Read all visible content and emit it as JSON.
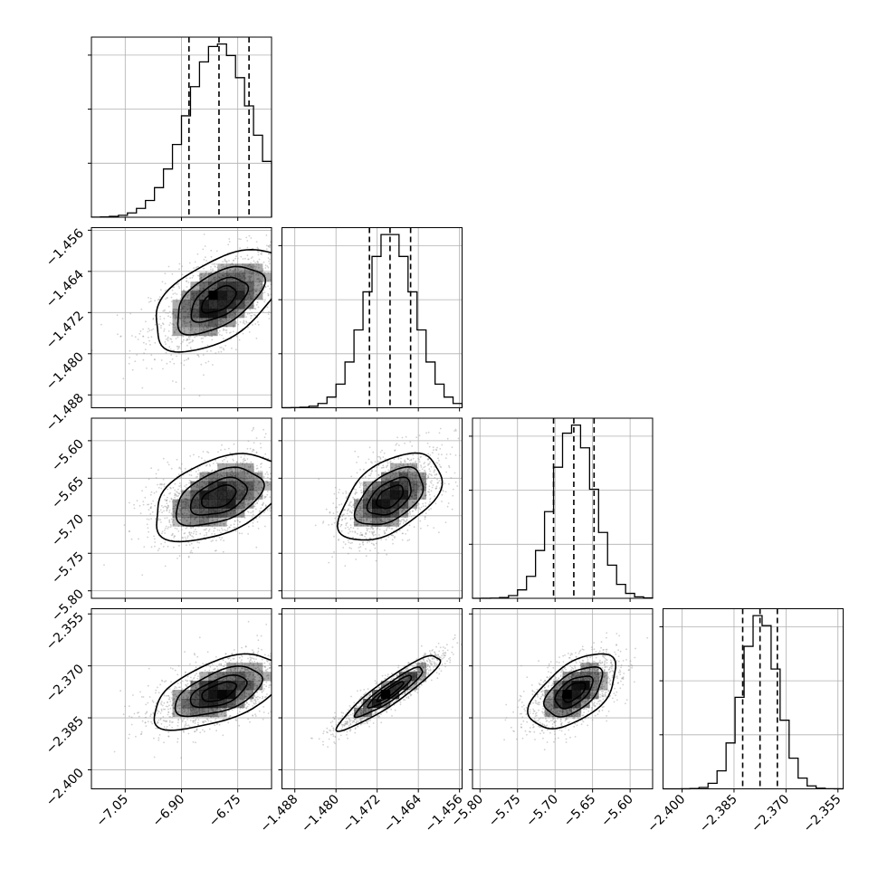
{
  "chart_data": {
    "type": "corner",
    "parameters": [
      {
        "index": 0,
        "median": -6.8,
        "q16": -6.88,
        "q84": -6.72,
        "sigma": 0.085,
        "range": [
          -7.14,
          -6.66
        ],
        "ticks": [
          -7.05,
          -6.9,
          -6.75
        ]
      },
      {
        "index": 1,
        "median": -1.4695,
        "q16": -1.4735,
        "q84": -1.4655,
        "sigma": 0.0048,
        "range": [
          -1.4905,
          -1.4555
        ],
        "ticks": [
          -1.488,
          -1.48,
          -1.472,
          -1.464,
          -1.456
        ]
      },
      {
        "index": 2,
        "median": -5.675,
        "q16": -5.702,
        "q84": -5.648,
        "sigma": 0.028,
        "range": [
          -5.81,
          -5.57
        ],
        "ticks": [
          -5.8,
          -5.75,
          -5.7,
          -5.65,
          -5.6
        ]
      },
      {
        "index": 3,
        "median": -2.3775,
        "q16": -2.3825,
        "q84": -2.3725,
        "sigma": 0.0052,
        "range": [
          -2.4055,
          -2.3535
        ],
        "ticks": [
          -2.4,
          -2.385,
          -2.37,
          -2.355
        ]
      }
    ],
    "correlations": [
      [
        1,
        0.55,
        0.45,
        0.55
      ],
      [
        0.55,
        1,
        0.5,
        0.92
      ],
      [
        0.45,
        0.5,
        1,
        0.55
      ],
      [
        0.55,
        0.92,
        0.55,
        1
      ]
    ],
    "x_tick_labels": [
      [
        "−7.05",
        "−6.90",
        "−6.75"
      ],
      [
        "−1.488",
        "−1.480",
        "−1.472",
        "−1.464",
        "−1.456"
      ],
      [
        "−5.80",
        "−5.75",
        "−5.70",
        "−5.65",
        "−5.60"
      ],
      [
        "−2.400",
        "−2.385",
        "−2.370",
        "−2.355"
      ]
    ],
    "y_tick_labels": [
      [],
      [
        "−1.456",
        "−1.464",
        "−1.472",
        "−1.480",
        "−1.488"
      ],
      [
        "−5.60",
        "−5.65",
        "−5.70",
        "−5.75",
        "−5.80"
      ],
      [
        "−2.355",
        "−2.370",
        "−2.385",
        "−2.400"
      ]
    ],
    "histogram_bins": 20,
    "quantile_lines": [
      "16%",
      "50%",
      "84%"
    ],
    "contour_levels_sigma": [
      0.5,
      1.0,
      1.5,
      2.0
    ],
    "grid": true,
    "colors": {
      "samples": "#9a9a9a",
      "lines": "#000000",
      "density": "#000000"
    }
  }
}
